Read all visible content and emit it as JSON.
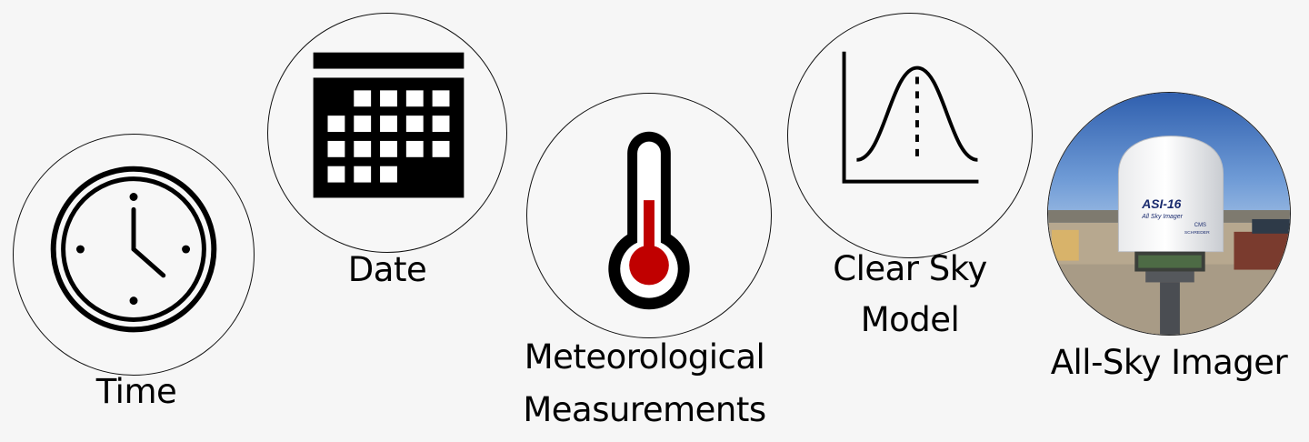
{
  "items": [
    {
      "label": "Time",
      "icon": "clock-icon"
    },
    {
      "label": "Date",
      "icon": "calendar-icon"
    },
    {
      "label_lines": [
        "Meteorological",
        "Measurements"
      ],
      "icon": "thermometer-icon"
    },
    {
      "label_lines": [
        "Clear Sky",
        "Model"
      ],
      "icon": "bell-curve-icon"
    },
    {
      "label": "All-Sky Imager",
      "icon": "sky-imager-photo"
    }
  ],
  "imager_text": {
    "model": "ASI-16",
    "subtitle": "All Sky Imager",
    "brand_top": "CMS",
    "brand_bottom": "SCHREDER"
  },
  "colors": {
    "thermometer_fill": "#c00000",
    "sky": "#3f6fb8"
  }
}
